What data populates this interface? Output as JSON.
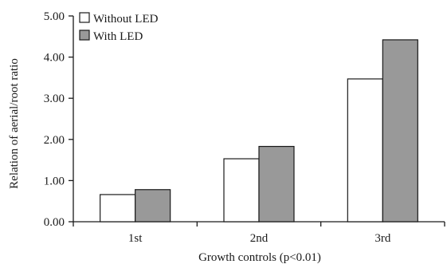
{
  "chart_data": {
    "type": "bar",
    "categories": [
      "1st",
      "2nd",
      "3rd"
    ],
    "series": [
      {
        "name": "Without LED",
        "values": [
          0.66,
          1.53,
          3.47
        ],
        "color": "#ffffff"
      },
      {
        "name": "With LED",
        "values": [
          0.78,
          1.83,
          4.42
        ],
        "color": "#999999"
      }
    ],
    "xlabel": "Growth controls (p<0.01)",
    "ylabel": "Relation of aerial/root ratio",
    "ylim": [
      0,
      5
    ],
    "yticks": [
      "0.00",
      "1.00",
      "2.00",
      "3.00",
      "4.00",
      "5.00"
    ],
    "legend_position": "top-left",
    "grid": false
  }
}
